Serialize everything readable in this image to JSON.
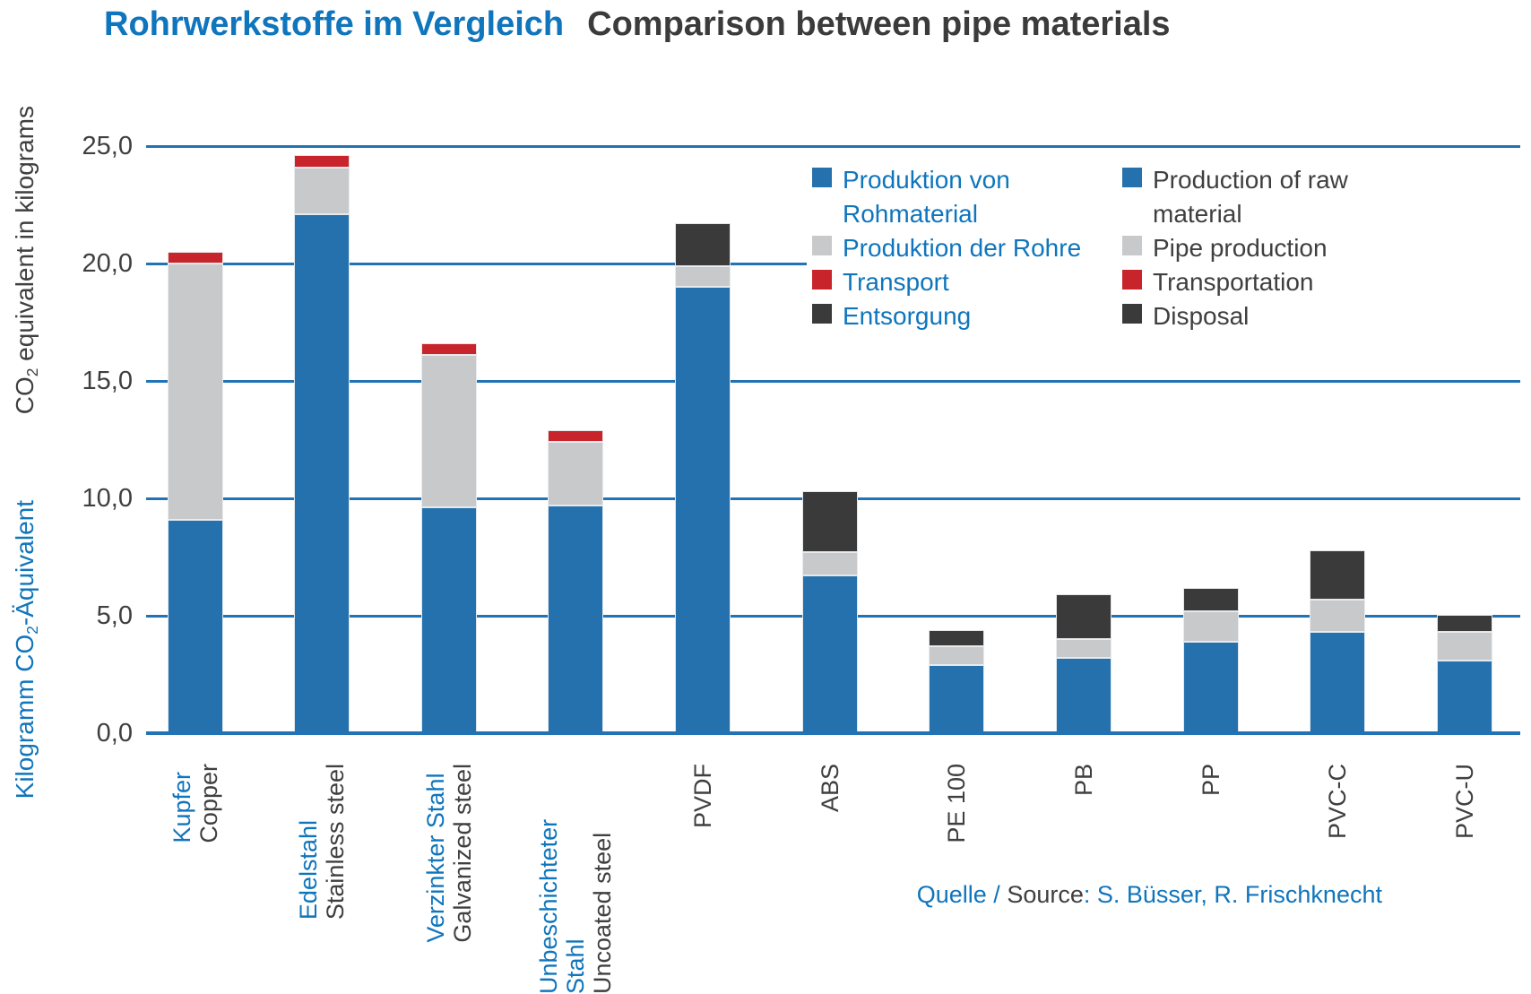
{
  "title": {
    "de": "Rohrwerkstoffe im Vergleich",
    "en": "Comparison between pipe materials"
  },
  "y_axis": {
    "label_en": {
      "pre": "CO",
      "sub": "2",
      "post": " equivalent in kilograms"
    },
    "label_de": {
      "pre": "Kilogramm CO",
      "sub": "2",
      "post": "-Äquivalent"
    },
    "tick_labels": [
      "0,0",
      "5,0",
      "10,0",
      "15,0",
      "20,0",
      "25,0"
    ]
  },
  "legend": {
    "de": [
      {
        "lines": [
          "Produktion von",
          "Rohmaterial"
        ],
        "color_key": "raw"
      },
      {
        "lines": [
          "Produktion der Rohre"
        ],
        "color_key": "pipe"
      },
      {
        "lines": [
          "Transport"
        ],
        "color_key": "transport"
      },
      {
        "lines": [
          "Entsorgung"
        ],
        "color_key": "disposal"
      }
    ],
    "en": [
      {
        "lines": [
          "Production of raw",
          "material"
        ],
        "color_key": "raw"
      },
      {
        "lines": [
          "Pipe production"
        ],
        "color_key": "pipe"
      },
      {
        "lines": [
          "Transportation"
        ],
        "color_key": "transport"
      },
      {
        "lines": [
          "Disposal"
        ],
        "color_key": "disposal"
      }
    ]
  },
  "source": {
    "de": "Quelle / ",
    "en": "Source",
    "rest": ": S. Büsser, R. Frischknecht"
  },
  "colors": {
    "raw": "#2471AD",
    "pipe": "#C8C9CB",
    "transport": "#C8242B",
    "disposal": "#3A3A3A",
    "grid_blue": "#2273B6",
    "text_blue": "#0F75BC",
    "text_dark": "#3F3F3F",
    "title_dark": "#3B3B3B"
  },
  "chart_data": {
    "type": "bar",
    "stacked": true,
    "title": "Rohrwerkstoffe im Vergleich / Comparison between pipe materials",
    "ylabel": "CO2 equivalent in kilograms / Kilogramm CO2-Äquivalent",
    "ylim": [
      0,
      25
    ],
    "ytick_step": 5,
    "grid": true,
    "legend_position": "upper right",
    "categories": [
      {
        "label_de": "Kupfer",
        "label_en": "Copper"
      },
      {
        "label_de": "Edelstahl",
        "label_en": "Stainless steel"
      },
      {
        "label_de": "Verzinkter Stahl",
        "label_en": "Galvanized steel"
      },
      {
        "label_de": "Unbeschichteter Stahl",
        "label_en": "Uncoated steel"
      },
      {
        "label_de": "",
        "label_en": "PVDF"
      },
      {
        "label_de": "",
        "label_en": "ABS"
      },
      {
        "label_de": "",
        "label_en": "PE 100"
      },
      {
        "label_de": "",
        "label_en": "PB"
      },
      {
        "label_de": "",
        "label_en": "PP"
      },
      {
        "label_de": "",
        "label_en": "PVC-C"
      },
      {
        "label_de": "",
        "label_en": "PVC-U"
      }
    ],
    "series": [
      {
        "name_de": "Produktion von Rohmaterial",
        "name_en": "Production of raw material",
        "color_key": "raw",
        "values": [
          9.1,
          22.1,
          9.6,
          9.7,
          19.0,
          6.7,
          2.9,
          3.2,
          3.9,
          4.3,
          3.1
        ]
      },
      {
        "name_de": "Produktion der Rohre",
        "name_en": "Pipe production",
        "color_key": "pipe",
        "values": [
          10.9,
          2.0,
          6.5,
          2.7,
          0.9,
          1.0,
          0.8,
          0.8,
          1.3,
          1.4,
          1.2
        ]
      },
      {
        "name_de": "Transport",
        "name_en": "Transportation",
        "color_key": "transport",
        "values": [
          0.5,
          0.5,
          0.5,
          0.5,
          0,
          0,
          0,
          0,
          0,
          0,
          0
        ]
      },
      {
        "name_de": "Entsorgung",
        "name_en": "Disposal",
        "color_key": "disposal",
        "values": [
          0,
          0,
          0,
          0,
          1.8,
          2.6,
          0.7,
          1.9,
          1.0,
          2.1,
          0.75
        ]
      }
    ],
    "totals": [
      20.5,
      24.6,
      16.6,
      12.9,
      21.7,
      10.3,
      4.4,
      5.9,
      6.2,
      7.8,
      5.05
    ]
  }
}
